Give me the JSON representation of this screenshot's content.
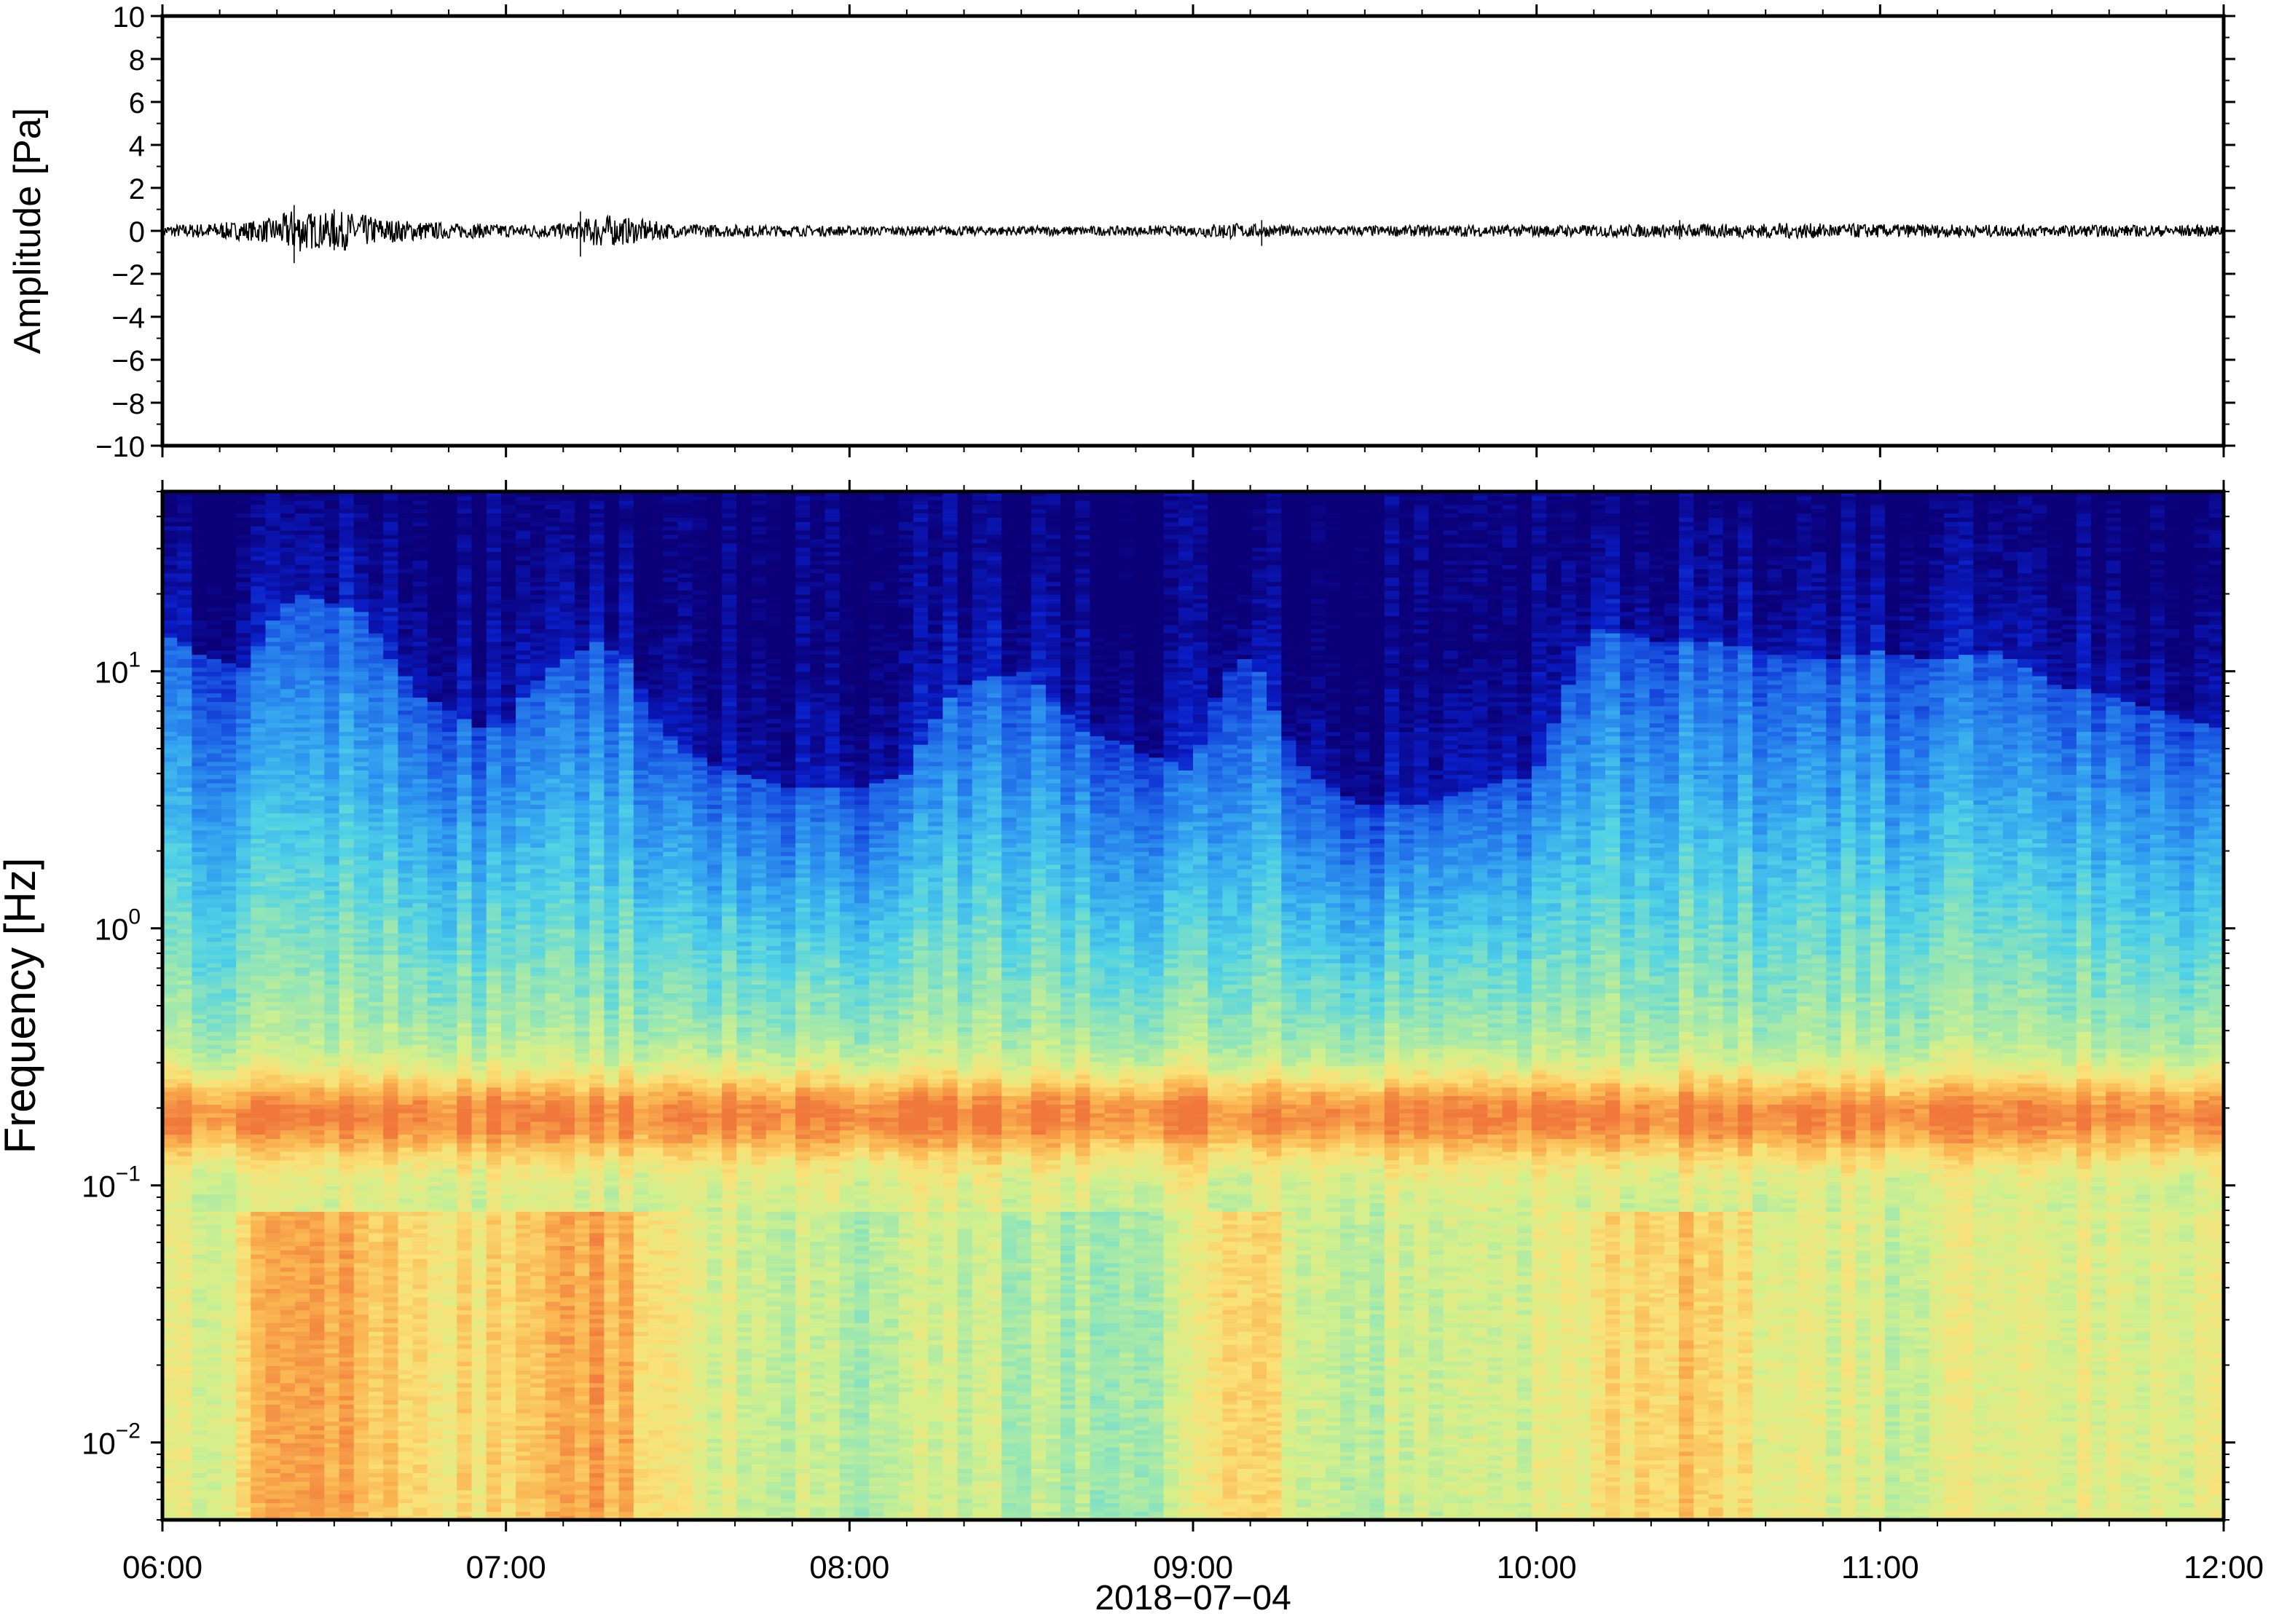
{
  "chart_data": [
    {
      "type": "line",
      "panel": "waveform",
      "ylabel": "Amplitude [Pa]",
      "ylim": [
        -10,
        10
      ],
      "y_ticks": [
        -10,
        -8,
        -6,
        -4,
        -2,
        0,
        2,
        4,
        6,
        8,
        10
      ],
      "y_tick_labels": [
        "−10",
        "−8",
        "−6",
        "−4",
        "−2",
        "0",
        "2",
        "4",
        "6",
        "8",
        "10"
      ],
      "xlim": [
        "06:00",
        "12:00"
      ],
      "grid": false,
      "series": [
        {
          "color": "#000000",
          "envelope_times": [
            "06:00",
            "06:15",
            "06:20",
            "06:23",
            "06:27",
            "06:32",
            "06:40",
            "06:50",
            "07:00",
            "07:10",
            "07:12",
            "07:16",
            "07:30",
            "08:00",
            "08:30",
            "09:00",
            "09:05",
            "09:10",
            "09:20",
            "09:45",
            "10:00",
            "10:30",
            "10:45",
            "11:00",
            "11:30",
            "12:00"
          ],
          "envelope_amplitude": [
            0.3,
            0.5,
            0.7,
            1.2,
            0.9,
            1.0,
            0.6,
            0.4,
            0.35,
            0.4,
            0.4,
            0.9,
            0.35,
            0.25,
            0.25,
            0.25,
            0.45,
            0.35,
            0.25,
            0.3,
            0.3,
            0.35,
            0.4,
            0.35,
            0.3,
            0.3
          ],
          "peaks": [
            {
              "time": "06:23",
              "min": -1.5,
              "max": 1.2
            },
            {
              "time": "06:30",
              "min": -0.9,
              "max": 1.0
            },
            {
              "time": "07:13",
              "min": -1.2,
              "max": 0.9
            },
            {
              "time": "09:12",
              "min": -0.7,
              "max": 0.5
            },
            {
              "time": "10:25",
              "min": -0.4,
              "max": 0.5
            }
          ]
        }
      ]
    },
    {
      "type": "heatmap",
      "panel": "spectrogram",
      "ylabel": "Frequency [Hz]",
      "yscale": "log",
      "ylim": [
        0.005,
        50
      ],
      "y_ticks": [
        0.01,
        0.1,
        1,
        10
      ],
      "y_tick_labels": [
        [
          "10",
          "−2"
        ],
        [
          "10",
          "−1"
        ],
        [
          "10",
          "0"
        ],
        [
          "10",
          "1"
        ]
      ],
      "xlim": [
        "06:00",
        "12:00"
      ],
      "x_ticks": [
        "06:00",
        "07:00",
        "08:00",
        "09:00",
        "10:00",
        "11:00",
        "12:00"
      ],
      "x_tick_labels": [
        "06:00",
        "07:00",
        "08:00",
        "09:00",
        "10:00",
        "11:00",
        "12:00"
      ],
      "xlabel": "2018−07−04",
      "colormap": "jet",
      "colormap_stops": [
        "#0b0078",
        "#0a1ec8",
        "#1e64e6",
        "#32a0f0",
        "#50d2e6",
        "#96e6b4",
        "#d2f08c",
        "#fae178",
        "#fab450",
        "#f0783c"
      ],
      "grid": false,
      "high_frequency_noise_ceiling": {
        "times": [
          "06:00",
          "06:05",
          "06:10",
          "06:15",
          "06:20",
          "06:25",
          "06:30",
          "06:35",
          "06:40",
          "06:45",
          "06:50",
          "06:55",
          "07:00",
          "07:05",
          "07:10",
          "07:15",
          "07:20",
          "07:25",
          "07:30",
          "07:40",
          "07:50",
          "08:00",
          "08:10",
          "08:20",
          "08:30",
          "08:40",
          "08:50",
          "09:00",
          "09:05",
          "09:10",
          "09:15",
          "09:20",
          "09:30",
          "09:40",
          "09:50",
          "10:00",
          "10:05",
          "10:10",
          "10:15",
          "10:20",
          "10:30",
          "10:40",
          "10:50",
          "11:00",
          "11:10",
          "11:20",
          "11:30",
          "11:40",
          "11:50",
          "12:00"
        ],
        "freq_hz": [
          14,
          12,
          11,
          10,
          17,
          20,
          18,
          17,
          11,
          8,
          7,
          6,
          6,
          9,
          11,
          13,
          12,
          7,
          5,
          4,
          3.5,
          3.5,
          4,
          9,
          10,
          6,
          5,
          4,
          9,
          12,
          6,
          4,
          3,
          3,
          3.5,
          4,
          8,
          15,
          14,
          13,
          13,
          12,
          11,
          12,
          11,
          12,
          9,
          8,
          7,
          6
        ]
      },
      "microbarom_band_hz": [
        0.14,
        0.25
      ],
      "low_frequency_energy": {
        "times": [
          "06:00",
          "06:10",
          "06:20",
          "06:25",
          "06:30",
          "06:40",
          "06:50",
          "07:00",
          "07:10",
          "07:15",
          "07:20",
          "07:30",
          "07:40",
          "08:00",
          "08:20",
          "08:40",
          "09:00",
          "09:05",
          "09:10",
          "09:20",
          "09:40",
          "10:00",
          "10:10",
          "10:20",
          "10:30",
          "10:40",
          "11:00",
          "11:20",
          "11:40",
          "12:00"
        ],
        "relative_level": [
          0.55,
          0.6,
          0.9,
          0.95,
          0.92,
          0.75,
          0.7,
          0.7,
          0.9,
          0.95,
          0.9,
          0.6,
          0.5,
          0.4,
          0.45,
          0.35,
          0.45,
          0.85,
          0.8,
          0.5,
          0.45,
          0.5,
          0.65,
          0.8,
          0.75,
          0.6,
          0.5,
          0.55,
          0.55,
          0.6
        ]
      }
    }
  ]
}
